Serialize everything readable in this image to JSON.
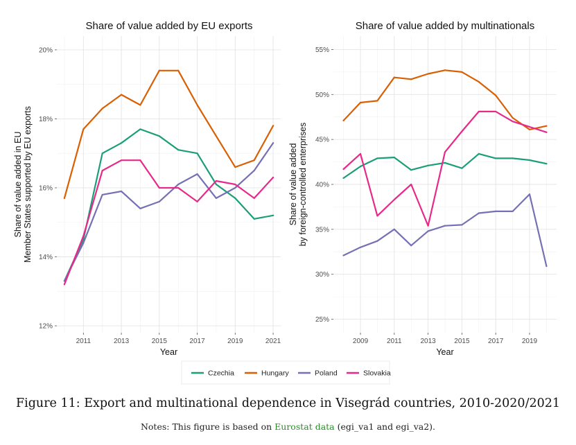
{
  "colors": {
    "Czechia": "#1b9e77",
    "Hungary": "#d95f02",
    "Poland": "#7570b3",
    "Slovakia": "#e7298a"
  },
  "legend": [
    "Czechia",
    "Hungary",
    "Poland",
    "Slovakia"
  ],
  "chart_data": [
    {
      "type": "line",
      "title": "Share of value added by EU exports",
      "xlabel": "Year",
      "ylabel": [
        "Share of value added in EU",
        "Member States supported by EU exports"
      ],
      "x": [
        2010,
        2011,
        2012,
        2013,
        2014,
        2015,
        2016,
        2017,
        2018,
        2019,
        2020,
        2021
      ],
      "xlim": [
        2009.6,
        2021.4
      ],
      "xticks": [
        2011,
        2013,
        2015,
        2017,
        2019,
        2021
      ],
      "ylim": [
        11.8,
        20.4
      ],
      "yticks": [
        12,
        14,
        16,
        18,
        20
      ],
      "ytick_labels": [
        "12%",
        "14%",
        "16%",
        "18%",
        "20%"
      ],
      "series": [
        {
          "name": "Czechia",
          "values": [
            13.3,
            14.5,
            17.0,
            17.3,
            17.7,
            17.5,
            17.1,
            17.0,
            16.1,
            15.7,
            15.1,
            15.2
          ]
        },
        {
          "name": "Hungary",
          "values": [
            15.7,
            17.7,
            18.3,
            18.7,
            18.4,
            19.4,
            19.4,
            18.4,
            17.5,
            16.6,
            16.8,
            17.8
          ]
        },
        {
          "name": "Poland",
          "values": [
            13.3,
            14.4,
            15.8,
            15.9,
            15.4,
            15.6,
            16.1,
            16.4,
            15.7,
            16.0,
            16.5,
            17.3
          ]
        },
        {
          "name": "Slovakia",
          "values": [
            13.2,
            14.6,
            16.5,
            16.8,
            16.8,
            16.0,
            16.0,
            15.6,
            16.2,
            16.1,
            15.7,
            16.3
          ]
        }
      ]
    },
    {
      "type": "line",
      "title": "Share of value added by multinationals",
      "xlabel": "Year",
      "ylabel": [
        "Share of value added",
        "by foreign-controlled enterprises"
      ],
      "x": [
        2008,
        2009,
        2010,
        2011,
        2012,
        2013,
        2014,
        2015,
        2016,
        2017,
        2018,
        2019,
        2020
      ],
      "xlim": [
        2007.4,
        2020.6
      ],
      "xticks": [
        2009,
        2011,
        2013,
        2015,
        2017,
        2019
      ],
      "ylim": [
        23.5,
        56.5
      ],
      "yticks": [
        25,
        30,
        35,
        40,
        45,
        50,
        55
      ],
      "ytick_labels": [
        "25%",
        "30%",
        "35%",
        "40%",
        "45%",
        "50%",
        "55%"
      ],
      "series": [
        {
          "name": "Czechia",
          "values": [
            40.7,
            42.0,
            42.9,
            43.0,
            41.6,
            42.1,
            42.4,
            41.8,
            43.4,
            42.9,
            42.9,
            42.7,
            42.3
          ]
        },
        {
          "name": "Hungary",
          "values": [
            47.1,
            49.1,
            49.3,
            51.9,
            51.7,
            52.3,
            52.7,
            52.5,
            51.4,
            49.9,
            47.4,
            46.1,
            46.5
          ]
        },
        {
          "name": "Poland",
          "values": [
            32.1,
            33.0,
            33.7,
            35.0,
            33.2,
            34.8,
            35.4,
            35.5,
            36.8,
            37.0,
            37.0,
            38.9,
            30.9
          ]
        },
        {
          "name": "Slovakia",
          "values": [
            41.7,
            43.4,
            36.5,
            38.3,
            40.0,
            35.4,
            43.6,
            45.9,
            48.1,
            48.1,
            47.0,
            46.4,
            45.8
          ]
        }
      ]
    }
  ],
  "caption": "Figure 11: Export and multinational dependence in Visegrád countries, 2010-2020/2021",
  "notes": {
    "before": "Notes: This figure is based on ",
    "link": "Eurostat data",
    "after": " (egi_va1 and egi_va2)."
  }
}
